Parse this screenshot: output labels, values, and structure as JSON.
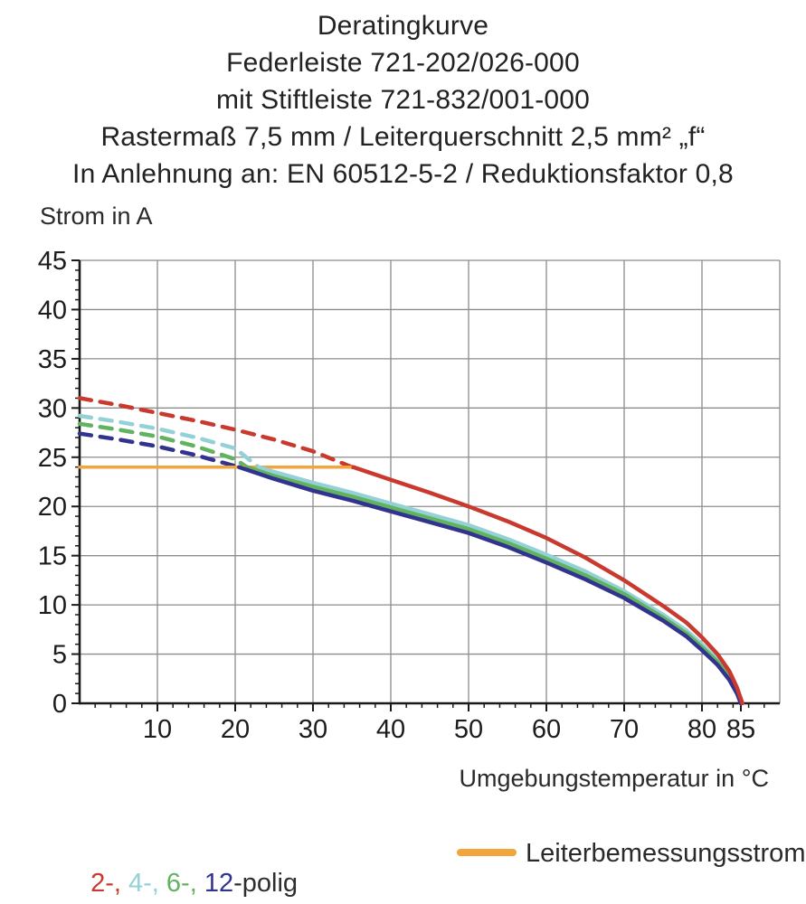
{
  "title_lines": [
    "Deratingkurve",
    "Federleiste 721-202/026-000",
    "mit Stiftleiste 721-832/001-000",
    "Rastermaß 7,5 mm / Leiterquerschnitt 2,5 mm² „f“",
    "In Anlehnung an: EN 60512-5-2 / Reduktionsfaktor 0,8"
  ],
  "chart_data": {
    "type": "line",
    "title": "Deratingkurve",
    "ylabel": "Strom in A",
    "xlabel": "Umgebungstemperatur in °C",
    "xlim": [
      0,
      90
    ],
    "ylim": [
      0,
      45
    ],
    "grid": true,
    "grid_color": "#8c8c8c",
    "axis_color": "#1a1a1a",
    "tick_label_color": "#1c1c1c",
    "x_gridlines": [
      10,
      20,
      30,
      40,
      50,
      60,
      70,
      80,
      90
    ],
    "y_gridlines": [
      5,
      10,
      15,
      20,
      25,
      30,
      35,
      40,
      45
    ],
    "x_ticks_labeled": [
      10,
      20,
      30,
      40,
      50,
      60,
      70,
      80,
      85
    ],
    "y_ticks_labeled": [
      0,
      5,
      10,
      15,
      20,
      25,
      30,
      35,
      40,
      45
    ],
    "x_minor_tick_step": 2,
    "y_minor_tick_step": 1,
    "series": [
      {
        "id": "polig-2-dashed",
        "name": "2-polig (derated region)",
        "style": "dashed",
        "color": "#c9392e",
        "width": 4.5,
        "points": [
          [
            0,
            31
          ],
          [
            5,
            30.3
          ],
          [
            10,
            29.5
          ],
          [
            15,
            28.7
          ],
          [
            20,
            27.8
          ],
          [
            25,
            26.8
          ],
          [
            30,
            25.6
          ],
          [
            35,
            24
          ]
        ]
      },
      {
        "id": "polig-4-dashed",
        "name": "4-polig (derated region)",
        "style": "dashed",
        "color": "#94d1d7",
        "width": 4.5,
        "points": [
          [
            0,
            29.2
          ],
          [
            5,
            28.6
          ],
          [
            10,
            27.9
          ],
          [
            15,
            27.0
          ],
          [
            20,
            25.9
          ],
          [
            23,
            24
          ]
        ]
      },
      {
        "id": "polig-6-dashed",
        "name": "6-polig (derated region)",
        "style": "dashed",
        "color": "#61b35f",
        "width": 4.5,
        "points": [
          [
            0,
            28.4
          ],
          [
            5,
            27.8
          ],
          [
            10,
            27.1
          ],
          [
            15,
            26.1
          ],
          [
            20,
            24.8
          ],
          [
            21.5,
            24
          ]
        ]
      },
      {
        "id": "polig-12-dashed",
        "name": "12-polig (derated region)",
        "style": "dashed",
        "color": "#32338f",
        "width": 4.5,
        "points": [
          [
            0,
            27.4
          ],
          [
            5,
            26.8
          ],
          [
            10,
            26.1
          ],
          [
            15,
            25.2
          ],
          [
            20,
            24.1
          ],
          [
            20.5,
            24
          ]
        ]
      },
      {
        "id": "rated-current-line",
        "name": "Leiterbemessungsstrom",
        "style": "solid",
        "color": "#f2a53a",
        "width": 3.5,
        "points": [
          [
            0,
            24
          ],
          [
            35.2,
            24
          ]
        ]
      },
      {
        "id": "polig-4-solid",
        "name": "4-polig",
        "style": "solid",
        "color": "#94d1d7",
        "width": 4.5,
        "points": [
          [
            23,
            24
          ],
          [
            25,
            23.5
          ],
          [
            30,
            22.4
          ],
          [
            35,
            21.4
          ],
          [
            40,
            20.3
          ],
          [
            45,
            19.2
          ],
          [
            50,
            18.1
          ],
          [
            55,
            16.7
          ],
          [
            60,
            15.1
          ],
          [
            65,
            13.4
          ],
          [
            70,
            11.4
          ],
          [
            75,
            9.0
          ],
          [
            78,
            7.4
          ],
          [
            80,
            6.0
          ],
          [
            82,
            4.4
          ],
          [
            83.5,
            2.9
          ],
          [
            84.5,
            1.4
          ],
          [
            85,
            0
          ]
        ]
      },
      {
        "id": "polig-6-solid",
        "name": "6-polig",
        "style": "solid",
        "color": "#61b35f",
        "width": 4.5,
        "points": [
          [
            21.5,
            24
          ],
          [
            25,
            23.1
          ],
          [
            30,
            22.0
          ],
          [
            35,
            21.0
          ],
          [
            40,
            19.9
          ],
          [
            45,
            18.8
          ],
          [
            50,
            17.7
          ],
          [
            55,
            16.3
          ],
          [
            60,
            14.7
          ],
          [
            65,
            13.0
          ],
          [
            70,
            11.1
          ],
          [
            75,
            8.7
          ],
          [
            78,
            7.1
          ],
          [
            80,
            5.7
          ],
          [
            82,
            4.2
          ],
          [
            83.5,
            2.7
          ],
          [
            84.5,
            1.2
          ],
          [
            85,
            0
          ]
        ]
      },
      {
        "id": "polig-12-solid",
        "name": "12-polig",
        "style": "solid",
        "color": "#32338f",
        "width": 4.5,
        "points": [
          [
            20.5,
            24
          ],
          [
            25,
            22.8
          ],
          [
            30,
            21.6
          ],
          [
            35,
            20.6
          ],
          [
            40,
            19.5
          ],
          [
            45,
            18.4
          ],
          [
            50,
            17.3
          ],
          [
            55,
            15.9
          ],
          [
            60,
            14.3
          ],
          [
            65,
            12.6
          ],
          [
            70,
            10.7
          ],
          [
            75,
            8.4
          ],
          [
            78,
            6.8
          ],
          [
            80,
            5.4
          ],
          [
            82,
            3.9
          ],
          [
            83.5,
            2.4
          ],
          [
            84.5,
            1.0
          ],
          [
            85,
            0
          ]
        ]
      },
      {
        "id": "polig-2-solid",
        "name": "2-polig",
        "style": "solid",
        "color": "#c9392e",
        "width": 4.5,
        "points": [
          [
            35.2,
            24
          ],
          [
            40,
            22.7
          ],
          [
            45,
            21.4
          ],
          [
            50,
            20.0
          ],
          [
            55,
            18.5
          ],
          [
            60,
            16.8
          ],
          [
            65,
            14.8
          ],
          [
            70,
            12.5
          ],
          [
            75,
            9.9
          ],
          [
            78,
            8.2
          ],
          [
            80,
            6.7
          ],
          [
            82,
            5.0
          ],
          [
            83.5,
            3.3
          ],
          [
            84.5,
            1.6
          ],
          [
            85.2,
            0
          ]
        ]
      }
    ]
  },
  "legend": {
    "poles": {
      "segments": [
        {
          "text": "2-,",
          "color": "#c9392e"
        },
        {
          "text": " 4-,",
          "color": "#94d1d7"
        },
        {
          "text": " 6-,",
          "color": "#61b35f"
        },
        {
          "text": " 12",
          "color": "#32338f"
        },
        {
          "text": "-polig",
          "color": "#2e2e2e"
        }
      ]
    },
    "rated": {
      "label": "Leiterbemessungsstrom",
      "color": "#f2a53a"
    }
  }
}
